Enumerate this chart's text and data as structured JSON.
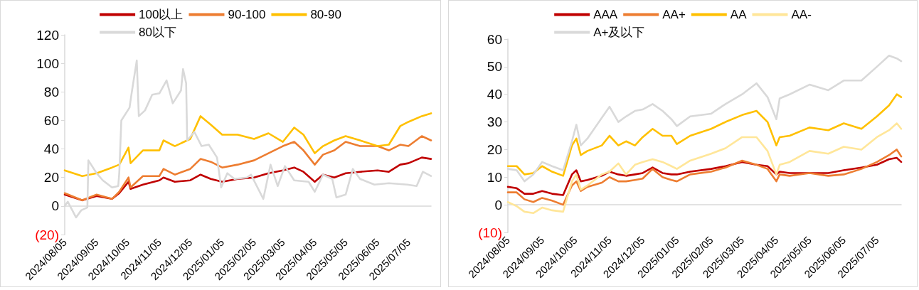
{
  "chart_data": [
    {
      "type": "line",
      "legend": "top",
      "marker": "none",
      "line_style": "solid",
      "xlim": [
        "2024-08-05",
        "2025-07-27"
      ],
      "xticks": [
        {
          "value": "2024-08-05",
          "label": "2024/08/05"
        },
        {
          "value": "2024-09-05",
          "label": "2024/09/05"
        },
        {
          "value": "2024-10-05",
          "label": "2024/10/05"
        },
        {
          "value": "2024-11-05",
          "label": "2024/11/05"
        },
        {
          "value": "2024-12-05",
          "label": "2024/12/05"
        },
        {
          "value": "2025-01-05",
          "label": "2025/01/05"
        },
        {
          "value": "2025-02-05",
          "label": "2025/02/05"
        },
        {
          "value": "2025-03-05",
          "label": "2025/03/05"
        },
        {
          "value": "2025-04-05",
          "label": "2025/04/05"
        },
        {
          "value": "2025-05-05",
          "label": "2025/05/05"
        },
        {
          "value": "2025-06-05",
          "label": "2025/06/05"
        },
        {
          "value": "2025-07-05",
          "label": "2025/07/05"
        }
      ],
      "ylim": [
        -20,
        120
      ],
      "yticks": [
        {
          "value": -20,
          "label": "(20)"
        },
        0,
        20,
        40,
        60,
        80,
        100,
        120
      ],
      "x": [
        "2024-08-05",
        "2024-08-22",
        "2024-09-05",
        "2024-09-20",
        "2024-09-27",
        "2024-10-06",
        "2024-10-08",
        "2024-10-20",
        "2024-11-05",
        "2024-11-09",
        "2024-11-20",
        "2024-12-05",
        "2024-12-15",
        "2024-12-25",
        "2025-01-05",
        "2025-01-20",
        "2025-02-05",
        "2025-02-19",
        "2025-03-05",
        "2025-03-16",
        "2025-03-25",
        "2025-04-05",
        "2025-04-13",
        "2025-04-24",
        "2025-05-05",
        "2025-05-19",
        "2025-06-05",
        "2025-06-16",
        "2025-06-27",
        "2025-07-05",
        "2025-07-18",
        "2025-07-27"
      ],
      "series": [
        {
          "name": "100以上",
          "color": "#c00000",
          "values": [
            8,
            4,
            7,
            5,
            9,
            17,
            12,
            15,
            18,
            20,
            17,
            18,
            22,
            19,
            17,
            19,
            20,
            23,
            25,
            27,
            24,
            17,
            22,
            20,
            23,
            24,
            25,
            24,
            29,
            30,
            34,
            33
          ]
        },
        {
          "name": "90-100",
          "color": "#ed7d31",
          "values": [
            9,
            4,
            8,
            5,
            10,
            20,
            13,
            21,
            21,
            26,
            22,
            26,
            33,
            31,
            27,
            29,
            32,
            37,
            42,
            45,
            39,
            29,
            36,
            39,
            45,
            42,
            42,
            39,
            43,
            42,
            49,
            46
          ]
        },
        {
          "name": "80-90",
          "color": "#ffc000",
          "values": [
            25,
            21,
            23,
            27,
            29,
            41,
            30,
            39,
            39,
            46,
            42,
            47,
            63,
            57,
            50,
            50,
            47,
            51,
            45,
            55,
            50,
            37,
            42,
            46,
            49,
            46,
            42,
            43,
            56,
            59,
            63,
            65
          ]
        },
        {
          "name": "80以下",
          "color": "#d9d9d9",
          "x": [
            "2024-08-05",
            "2024-08-08",
            "2024-08-16",
            "2024-08-21",
            "2024-08-27",
            "2024-08-28",
            "2024-09-05",
            "2024-09-11",
            "2024-09-20",
            "2024-09-26",
            "2024-09-27",
            "2024-09-29",
            "2024-10-07",
            "2024-10-09",
            "2024-10-14",
            "2024-10-16",
            "2024-10-22",
            "2024-10-29",
            "2024-11-05",
            "2024-11-12",
            "2024-11-18",
            "2024-11-26",
            "2024-11-28",
            "2024-12-01",
            "2024-12-02",
            "2024-12-09",
            "2024-12-16",
            "2024-12-23",
            "2024-12-31",
            "2025-01-04",
            "2025-01-10",
            "2025-01-17",
            "2025-01-29",
            "2025-02-02",
            "2025-02-14",
            "2025-02-21",
            "2025-02-28",
            "2025-03-07",
            "2025-03-16",
            "2025-03-30",
            "2025-04-05",
            "2025-04-13",
            "2025-04-22",
            "2025-04-26",
            "2025-05-05",
            "2025-05-12",
            "2025-05-19",
            "2025-06-02",
            "2025-06-16",
            "2025-07-04",
            "2025-07-13",
            "2025-07-19",
            "2025-07-27"
          ],
          "values": [
            0,
            3,
            -8,
            -3,
            -1,
            32,
            23,
            18,
            13,
            14,
            23,
            60,
            69,
            79,
            102,
            63,
            67,
            78,
            79,
            88,
            72,
            81,
            96,
            86,
            46,
            52,
            42,
            43,
            34,
            13,
            23,
            19,
            20,
            22,
            5,
            29,
            14,
            28,
            18,
            17,
            10,
            22,
            19,
            6,
            8,
            26,
            19,
            15,
            16,
            15,
            14,
            24,
            21
          ]
        }
      ]
    },
    {
      "type": "line",
      "legend": "top",
      "marker": "none",
      "line_style": "solid",
      "xlim": [
        "2024-08-05",
        "2025-07-27"
      ],
      "xticks": [
        {
          "value": "2024-08-05",
          "label": "2024/08/05"
        },
        {
          "value": "2024-09-05",
          "label": "2024/09/05"
        },
        {
          "value": "2024-10-05",
          "label": "2024/10/05"
        },
        {
          "value": "2024-11-05",
          "label": "2024/11/05"
        },
        {
          "value": "2024-12-05",
          "label": "2024/12/05"
        },
        {
          "value": "2025-01-05",
          "label": "2025/01/05"
        },
        {
          "value": "2025-02-05",
          "label": "2025/02/05"
        },
        {
          "value": "2025-03-05",
          "label": "2025/03/05"
        },
        {
          "value": "2025-04-05",
          "label": "2025/04/05"
        },
        {
          "value": "2025-05-05",
          "label": "2025/05/05"
        },
        {
          "value": "2025-06-05",
          "label": "2025/06/05"
        },
        {
          "value": "2025-07-05",
          "label": "2025/07/05"
        }
      ],
      "ylim": [
        -10,
        60
      ],
      "yticks": [
        {
          "value": -10,
          "label": "(10)"
        },
        0,
        10,
        20,
        30,
        40,
        50,
        60
      ],
      "x": [
        "2024-08-05",
        "2024-08-13",
        "2024-08-20",
        "2024-08-28",
        "2024-09-05",
        "2024-09-14",
        "2024-09-24",
        "2024-10-02",
        "2024-10-06",
        "2024-10-10",
        "2024-10-16",
        "2024-10-29",
        "2024-11-05",
        "2024-11-13",
        "2024-11-20",
        "2024-11-28",
        "2024-12-05",
        "2024-12-14",
        "2024-12-23",
        "2024-12-31",
        "2025-01-05",
        "2025-01-17",
        "2025-02-05",
        "2025-02-18",
        "2025-03-05",
        "2025-03-18",
        "2025-03-28",
        "2025-04-05",
        "2025-04-08",
        "2025-04-17",
        "2025-05-05",
        "2025-05-22",
        "2025-06-05",
        "2025-06-21",
        "2025-07-05",
        "2025-07-16",
        "2025-07-23",
        "2025-07-27"
      ],
      "series": [
        {
          "name": "AAA",
          "color": "#c00000",
          "values": [
            6.5,
            6,
            4,
            4,
            5,
            4,
            3.5,
            11,
            12.5,
            8.5,
            9,
            10.5,
            12,
            11,
            10.5,
            11,
            11.5,
            13.5,
            11.5,
            11,
            11,
            12,
            13,
            14,
            15.5,
            14.5,
            14,
            11,
            12,
            11.5,
            11.5,
            11.5,
            12.5,
            13.5,
            14.5,
            16.5,
            17,
            15.5
          ]
        },
        {
          "name": "AA+",
          "color": "#ed7d31",
          "values": [
            4.5,
            4.5,
            2,
            1,
            2.5,
            1.5,
            0,
            7,
            8.5,
            5,
            6.5,
            8,
            10,
            8.5,
            8.5,
            9,
            9.5,
            13,
            10,
            9,
            8.5,
            11,
            12,
            13.5,
            16,
            14.5,
            13,
            8.5,
            11,
            10.5,
            11.5,
            10.5,
            11,
            13,
            15.5,
            18,
            20,
            17.5
          ]
        },
        {
          "name": "AA",
          "color": "#ffc000",
          "values": [
            14,
            14,
            11,
            11.5,
            14,
            12,
            10.5,
            21.5,
            24,
            18,
            19.5,
            21.5,
            25,
            21.5,
            23,
            21.5,
            24.5,
            27.5,
            25,
            25,
            22,
            25,
            27.5,
            30,
            32.5,
            34,
            30,
            21.5,
            24.5,
            25,
            28,
            27,
            29.5,
            27.5,
            32,
            36,
            40,
            39
          ]
        },
        {
          "name": "AA-",
          "color": "#ffe699",
          "values": [
            1,
            -0.5,
            -2.5,
            -3,
            -1,
            -2,
            -2.5,
            8.5,
            11,
            5.5,
            7,
            11,
            12,
            15,
            11,
            14.5,
            15.5,
            16.5,
            15.5,
            14,
            13,
            16,
            18.5,
            20.5,
            24.5,
            24.5,
            19.5,
            11,
            14.5,
            15.5,
            19.5,
            18.5,
            21,
            20,
            24.5,
            27,
            29.5,
            27.5
          ]
        },
        {
          "name": "A+及以下",
          "color": "#d9d9d9",
          "values": [
            13,
            12.5,
            8.5,
            11,
            15.5,
            14,
            12.5,
            23,
            29,
            21.5,
            24,
            31.5,
            35.5,
            30,
            32,
            34,
            34.5,
            36.5,
            34,
            31,
            28.5,
            32,
            33,
            36.5,
            40,
            44,
            39,
            31,
            38.5,
            40,
            43.5,
            41.5,
            45,
            45,
            50,
            54,
            53,
            52
          ]
        }
      ]
    }
  ]
}
